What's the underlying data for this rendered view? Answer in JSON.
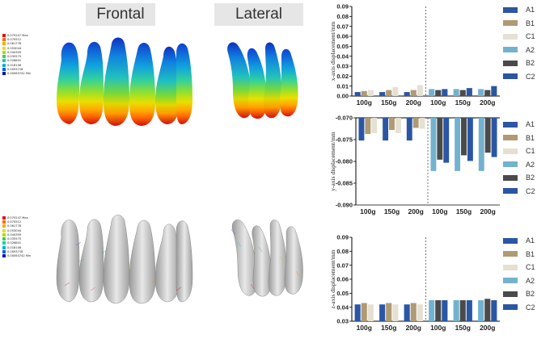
{
  "views": {
    "frontal": "Frontal",
    "lateral": "Lateral"
  },
  "color_legend": {
    "entries": [
      "0.079247 Max",
      "0.070512",
      "0.061778",
      "0.053044",
      "0.044309",
      "0.035575",
      "0.026841",
      "0.018106",
      "0.0093718",
      "0.00063742 Min"
    ],
    "colors": [
      "#e01010",
      "#ff6a00",
      "#ffaa00",
      "#e8e000",
      "#a8e000",
      "#40d050",
      "#00d0b0",
      "#00b0e0",
      "#0060e0",
      "#0010c0"
    ]
  },
  "series_colors": {
    "A1": "#2a56a4",
    "B1": "#b09a74",
    "C1": "#e5e0d2",
    "A2": "#73b2cf",
    "B2": "#4a4a4a",
    "C2": "#2a56a4"
  },
  "series_names": [
    "A1",
    "B1",
    "C1",
    "A2",
    "B2",
    "C2"
  ],
  "chart_data": [
    {
      "type": "bar",
      "ylabel": "x-axis displacement/mm",
      "categories": [
        "100g",
        "150g",
        "200g",
        "100g",
        "150g",
        "200g"
      ],
      "ylim": [
        0,
        0.09
      ],
      "yticks": [
        0,
        0.01,
        0.02,
        0.03,
        0.04,
        0.05,
        0.06,
        0.07,
        0.08,
        0.09
      ],
      "ytick_labels": [
        "0.00",
        "0.01",
        "0.02",
        "0.03",
        "0.04",
        "0.05",
        "0.06",
        "0.07",
        "0.08",
        "0.09"
      ],
      "divider_after_index": 2,
      "series": [
        {
          "name": "A1",
          "values": [
            0.004,
            0.004,
            0.004,
            null,
            null,
            null
          ]
        },
        {
          "name": "B1",
          "values": [
            0.005,
            0.006,
            0.006,
            null,
            null,
            null
          ]
        },
        {
          "name": "C1",
          "values": [
            0.006,
            0.009,
            0.011,
            null,
            null,
            null
          ]
        },
        {
          "name": "A2",
          "values": [
            null,
            null,
            null,
            0.007,
            0.007,
            0.007
          ]
        },
        {
          "name": "B2",
          "values": [
            null,
            null,
            null,
            0.006,
            0.006,
            0.006
          ]
        },
        {
          "name": "C2",
          "values": [
            null,
            null,
            null,
            0.007,
            0.008,
            0.01
          ]
        }
      ]
    },
    {
      "type": "bar",
      "ylabel": "y-axis displacement/mm",
      "categories": [
        "100g",
        "150g",
        "200g",
        "100g",
        "150g",
        "200g"
      ],
      "ylim": [
        -0.09,
        -0.07
      ],
      "yticks": [
        -0.07,
        -0.075,
        -0.08,
        -0.085,
        -0.09
      ],
      "ytick_labels": [
        "-0.070",
        "-0.075",
        "-0.080",
        "-0.085",
        "-0.090"
      ],
      "baseline": -0.07,
      "divider_after_index": 2,
      "series": [
        {
          "name": "A1",
          "values": [
            -0.0752,
            -0.0752,
            -0.0752,
            null,
            null,
            null
          ]
        },
        {
          "name": "B1",
          "values": [
            -0.0737,
            -0.0728,
            -0.0723,
            null,
            null,
            null
          ]
        },
        {
          "name": "C1",
          "values": [
            -0.0735,
            -0.0735,
            -0.0725,
            null,
            null,
            null
          ]
        },
        {
          "name": "A2",
          "values": [
            null,
            null,
            null,
            -0.0822,
            -0.0822,
            -0.0822
          ]
        },
        {
          "name": "B2",
          "values": [
            null,
            null,
            null,
            -0.0796,
            -0.0786,
            -0.078
          ]
        },
        {
          "name": "C2",
          "values": [
            null,
            null,
            null,
            -0.0803,
            -0.0799,
            -0.079
          ]
        }
      ]
    },
    {
      "type": "bar",
      "ylabel": "z-axis displacement/mm",
      "categories": [
        "100g",
        "150g",
        "200g",
        "100g",
        "150g",
        "200g"
      ],
      "ylim": [
        0.03,
        0.09
      ],
      "yticks": [
        0.03,
        0.04,
        0.05,
        0.06,
        0.07,
        0.08,
        0.09
      ],
      "ytick_labels": [
        "0.03",
        "0.04",
        "0.05",
        "0.06",
        "0.07",
        "0.08",
        "0.09"
      ],
      "divider_after_index": 2,
      "series": [
        {
          "name": "A1",
          "values": [
            0.042,
            0.042,
            0.042,
            null,
            null,
            null
          ]
        },
        {
          "name": "B1",
          "values": [
            0.043,
            0.043,
            0.043,
            null,
            null,
            null
          ]
        },
        {
          "name": "C1",
          "values": [
            0.042,
            0.042,
            0.042,
            null,
            null,
            null
          ]
        },
        {
          "name": "A2",
          "values": [
            null,
            null,
            null,
            0.045,
            0.045,
            0.045
          ]
        },
        {
          "name": "B2",
          "values": [
            null,
            null,
            null,
            0.045,
            0.045,
            0.046
          ]
        },
        {
          "name": "C2",
          "values": [
            null,
            null,
            null,
            0.045,
            0.045,
            0.045
          ]
        }
      ]
    }
  ]
}
